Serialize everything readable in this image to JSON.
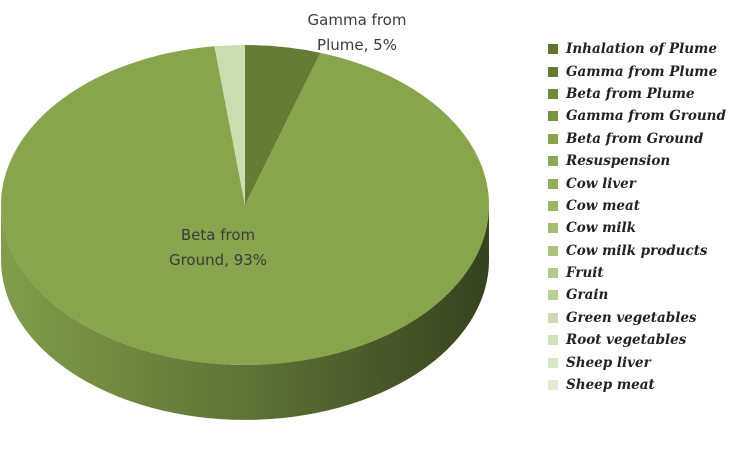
{
  "chart_data": {
    "type": "pie3d",
    "categories": [
      "Inhalation of Plume",
      "Gamma from Plume",
      "Beta from Plume",
      "Gamma from Ground",
      "Beta from Ground",
      "Resuspension",
      "Cow liver",
      "Cow meat",
      "Cow milk",
      "Cow milk products",
      "Fruit",
      "Grain",
      "Green vegetables",
      "Root vegetables",
      "Sheep liver",
      "Sheep meat"
    ],
    "values": [
      0,
      5,
      0,
      0,
      93,
      0,
      0,
      0,
      0,
      0,
      0,
      0,
      2,
      0,
      0,
      0
    ],
    "value_labels": [
      null,
      "5%",
      null,
      null,
      "93%",
      null,
      null,
      null,
      null,
      null,
      null,
      null,
      null,
      null,
      null,
      null
    ],
    "colors": [
      "#5f7530",
      "#657b36",
      "#6f8a3c",
      "#779440",
      "#88a54e",
      "#8aab53",
      "#8fb05a",
      "#98b665",
      "#a1bd71",
      "#aac47e",
      "#b3ca8b",
      "#bcd199",
      "#cadcb0",
      "#d2e2bb",
      "#d9e6c6",
      "#e0ebd1"
    ],
    "legend": "right"
  }
}
